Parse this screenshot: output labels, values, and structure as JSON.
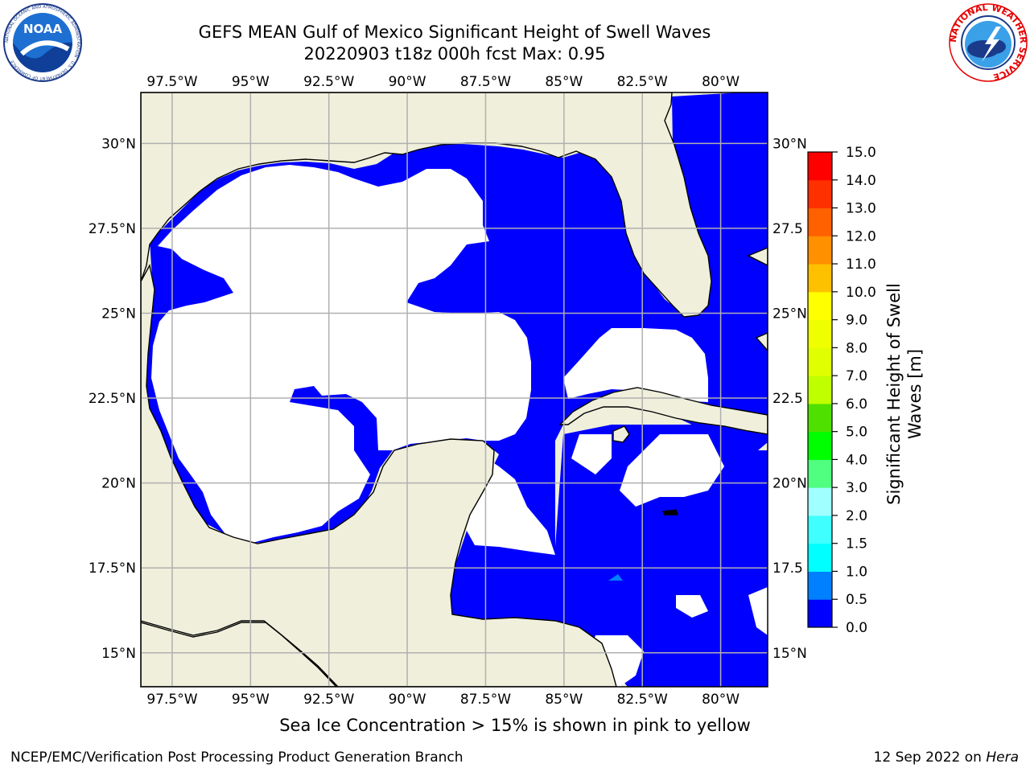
{
  "title": "GEFS MEAN Gulf of Mexico Significant Height of Swell Waves",
  "subtitle": "20220903 t18z 000h fcst   Max: 0.95",
  "note": "Sea Ice Concentration > 15% is shown in pink to yellow",
  "footer": {
    "left": "NCEP/EMC/Verification Post Processing Product Generation Branch",
    "right_date": "12 Sep 2022 on ",
    "right_host": "Hera"
  },
  "logos": {
    "noaa_text": "NOAA",
    "noaa_ring": "NATIONAL OCEANIC AND ATMOSPHERIC ADMINISTRATION · U.S. DEPARTMENT OF COMMERCE",
    "nws_ring": "NATIONAL WEATHER SERVICE"
  },
  "colors": {
    "land": "#efefdc",
    "ocean_low": "#0000ff",
    "ocean_mid": "#0080ff",
    "calm": "#ffffff",
    "grid": "#b0b0b0"
  },
  "map": {
    "lon_range": [
      -98.5,
      -78.5
    ],
    "lat_range": [
      14,
      31.5
    ],
    "lon_ticks": [
      "97.5°W",
      "95°W",
      "92.5°W",
      "90°W",
      "87.5°W",
      "85°W",
      "82.5°W",
      "80°W"
    ],
    "lat_ticks_left": [
      "30°N",
      "27.5°N",
      "25°N",
      "22.5°N",
      "20°N",
      "17.5°N",
      "15°N"
    ],
    "lat_ticks_right": [
      "30°N",
      "27.5",
      "25°N",
      "22.5",
      "20°N",
      "17.5",
      "15°N"
    ]
  },
  "chart_data": {
    "type": "heatmap",
    "title": "GEFS MEAN Gulf of Mexico Significant Height of Swell Waves",
    "subtitle": "20220903 t18z 000h fcst   Max: 0.95",
    "max_value": 0.95,
    "colorbar": {
      "label": "Significant Height of Swell Waves [m]",
      "range": [
        0,
        15
      ],
      "ticks": [
        "0.0",
        "0.5",
        "1.0",
        "1.5",
        "2.0",
        "3.0",
        "4.0",
        "5.0",
        "6.0",
        "7.0",
        "8.0",
        "9.0",
        "10.0",
        "11.0",
        "12.0",
        "13.0",
        "14.0",
        "15.0"
      ],
      "bins": [
        {
          "from": 0.0,
          "to": 0.5,
          "color": "#0000ff"
        },
        {
          "from": 0.5,
          "to": 1.0,
          "color": "#0080ff"
        },
        {
          "from": 1.0,
          "to": 1.5,
          "color": "#00ffff"
        },
        {
          "from": 1.5,
          "to": 2.0,
          "color": "#40ffff"
        },
        {
          "from": 2.0,
          "to": 3.0,
          "color": "#a0ffff"
        },
        {
          "from": 3.0,
          "to": 4.0,
          "color": "#50ff80"
        },
        {
          "from": 4.0,
          "to": 5.0,
          "color": "#00ff00"
        },
        {
          "from": 5.0,
          "to": 6.0,
          "color": "#50e000"
        },
        {
          "from": 6.0,
          "to": 7.0,
          "color": "#c0ff00"
        },
        {
          "from": 7.0,
          "to": 8.0,
          "color": "#e0ff00"
        },
        {
          "from": 8.0,
          "to": 9.0,
          "color": "#f0ff00"
        },
        {
          "from": 9.0,
          "to": 10.0,
          "color": "#ffff00"
        },
        {
          "from": 10.0,
          "to": 11.0,
          "color": "#ffc000"
        },
        {
          "from": 11.0,
          "to": 12.0,
          "color": "#ff9000"
        },
        {
          "from": 12.0,
          "to": 13.0,
          "color": "#ff6000"
        },
        {
          "from": 13.0,
          "to": 14.0,
          "color": "#ff3000"
        },
        {
          "from": 14.0,
          "to": 15.0,
          "color": "#ff0000"
        }
      ]
    },
    "grid": true
  }
}
